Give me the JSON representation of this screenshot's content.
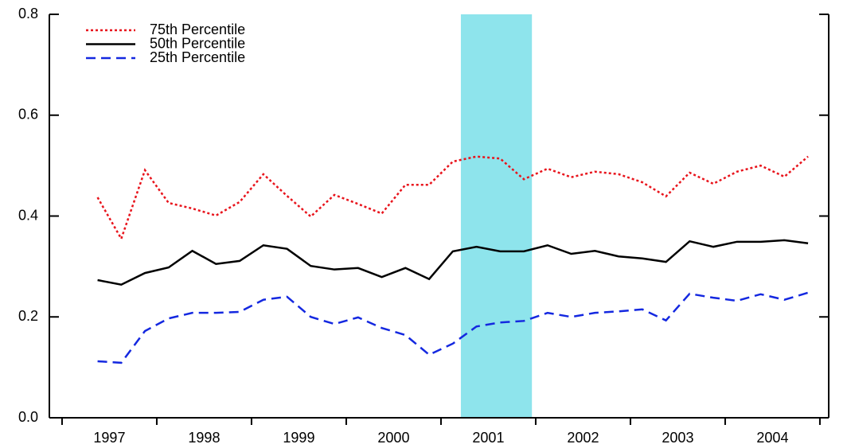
{
  "chart_data": {
    "type": "line",
    "x": [
      1997.375,
      1997.625,
      1997.875,
      1998.125,
      1998.375,
      1998.625,
      1998.875,
      1999.125,
      1999.375,
      1999.625,
      1999.875,
      2000.125,
      2000.375,
      2000.625,
      2000.875,
      2001.125,
      2001.375,
      2001.625,
      2001.875,
      2002.125,
      2002.375,
      2002.625,
      2002.875,
      2003.125,
      2003.375,
      2003.625,
      2003.875,
      2004.125,
      2004.375,
      2004.625,
      2004.875
    ],
    "series": [
      {
        "name": "75th Percentile",
        "color": "#e8141c",
        "style": "dotted",
        "values": [
          0.437,
          0.355,
          0.491,
          0.426,
          0.415,
          0.401,
          0.428,
          0.483,
          0.44,
          0.399,
          0.442,
          0.424,
          0.405,
          0.462,
          0.462,
          0.508,
          0.518,
          0.514,
          0.473,
          0.494,
          0.477,
          0.488,
          0.483,
          0.467,
          0.439,
          0.486,
          0.464,
          0.488,
          0.5,
          0.478,
          0.518
        ]
      },
      {
        "name": "50th Percentile",
        "color": "#000000",
        "style": "solid",
        "values": [
          0.273,
          0.264,
          0.287,
          0.298,
          0.331,
          0.305,
          0.311,
          0.342,
          0.335,
          0.301,
          0.294,
          0.297,
          0.279,
          0.297,
          0.275,
          0.33,
          0.339,
          0.33,
          0.33,
          0.342,
          0.325,
          0.331,
          0.32,
          0.316,
          0.309,
          0.35,
          0.339,
          0.349,
          0.349,
          0.352,
          0.346
        ]
      },
      {
        "name": "25th Percentile",
        "color": "#1428e0",
        "style": "dashed",
        "values": [
          0.112,
          0.109,
          0.172,
          0.197,
          0.208,
          0.208,
          0.21,
          0.234,
          0.24,
          0.2,
          0.186,
          0.199,
          0.178,
          0.164,
          0.125,
          0.147,
          0.181,
          0.189,
          0.192,
          0.208,
          0.2,
          0.208,
          0.211,
          0.215,
          0.193,
          0.246,
          0.238,
          0.232,
          0.245,
          0.234,
          0.248
        ]
      }
    ],
    "shaded_x": [
      2001.21,
      2001.96
    ],
    "shade_color": "#8ee4ec",
    "xlim": [
      1996.866,
      2005.093
    ],
    "xticks": [
      {
        "value": 1997.5,
        "label": "1997"
      },
      {
        "value": 1998.5,
        "label": "1998"
      },
      {
        "value": 1999.5,
        "label": "1999"
      },
      {
        "value": 2000.5,
        "label": "2000"
      },
      {
        "value": 2001.5,
        "label": "2001"
      },
      {
        "value": 2002.5,
        "label": "2002"
      },
      {
        "value": 2003.5,
        "label": "2003"
      },
      {
        "value": 2004.5,
        "label": "2004"
      }
    ],
    "ylim": [
      0,
      0.8
    ],
    "yticks": [
      {
        "value": 0,
        "label": "0.0"
      },
      0.2,
      0.4,
      0.6,
      0.8
    ],
    "legend": "top-left"
  }
}
